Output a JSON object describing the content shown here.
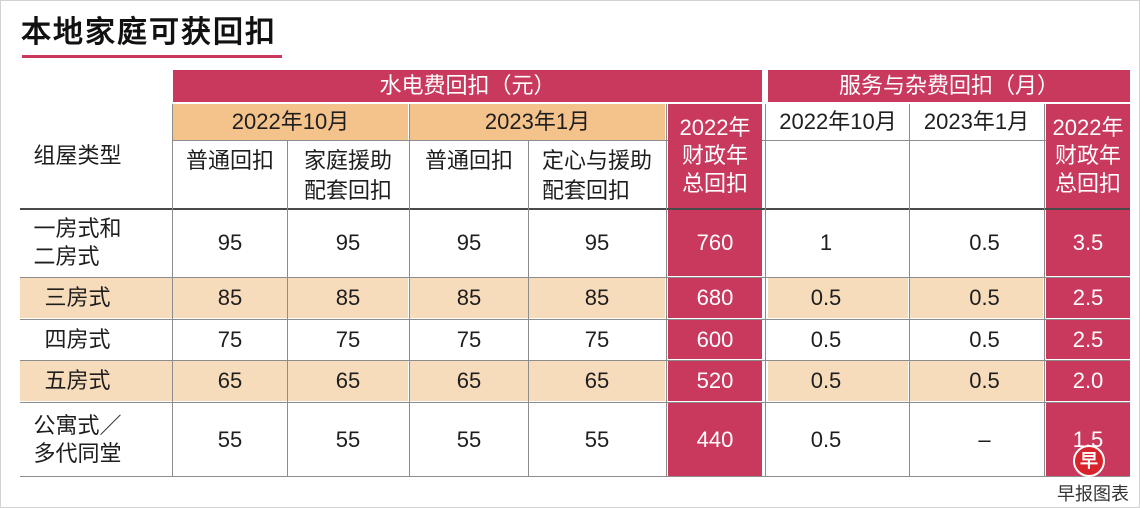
{
  "chart_data": {
    "type": "table",
    "title": "本地家庭可获回扣",
    "row_header": "组屋类型",
    "column_groups": [
      {
        "label": "水电费回扣（元）",
        "periods": [
          {
            "label": "2022年10月",
            "columns": [
              "普通回扣",
              "家庭援助\n配套回扣"
            ]
          },
          {
            "label": "2023年1月",
            "columns": [
              "普通回扣",
              "定心与援助\n配套回扣"
            ]
          }
        ],
        "total": "2022年\n财政年\n总回扣"
      },
      {
        "label": "服务与杂费回扣（月）",
        "periods": [
          {
            "label": "2022年10月"
          },
          {
            "label": "2023年1月"
          }
        ],
        "total": "2022年\n财政年\n总回扣"
      }
    ],
    "rows": [
      {
        "label": "一房式和\n二房式",
        "values": [
          "95",
          "95",
          "95",
          "95",
          "760",
          "1",
          "0.5",
          "3.5"
        ]
      },
      {
        "label": "三房式",
        "values": [
          "85",
          "85",
          "85",
          "85",
          "680",
          "0.5",
          "0.5",
          "2.5"
        ]
      },
      {
        "label": "四房式",
        "values": [
          "75",
          "75",
          "75",
          "75",
          "600",
          "0.5",
          "0.5",
          "2.5"
        ]
      },
      {
        "label": "五房式",
        "values": [
          "65",
          "65",
          "65",
          "65",
          "520",
          "0.5",
          "0.5",
          "2.0"
        ]
      },
      {
        "label": "公寓式／\n多代同堂",
        "values": [
          "55",
          "55",
          "55",
          "55",
          "440",
          "0.5",
          "–",
          "1.5"
        ]
      }
    ]
  },
  "source_credit": "早报图表",
  "logo_text": "早",
  "colors": {
    "accent": "#c8395d",
    "header_peach": "#f4c38c",
    "row_peach": "#f7dcbc",
    "logo_red": "#d8232c"
  }
}
